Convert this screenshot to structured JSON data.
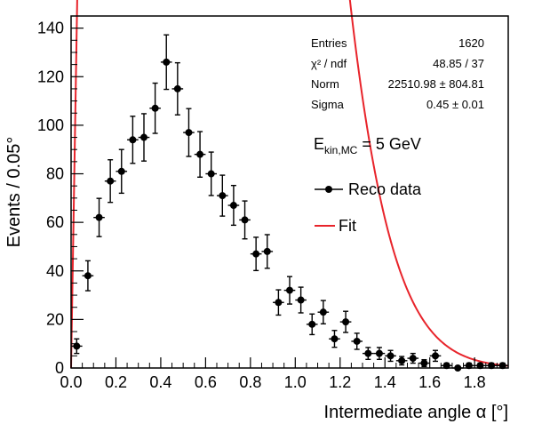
{
  "chart_data": {
    "type": "scatter",
    "xlabel": "Intermediate angle α [°]",
    "ylabel": "Events / 0.05°",
    "xlim": [
      0.0,
      1.95
    ],
    "ylim": [
      0,
      145
    ],
    "x_ticks": [
      "0.0",
      "0.2",
      "0.4",
      "0.6",
      "0.8",
      "1.0",
      "1.2",
      "1.4",
      "1.6",
      "1.8"
    ],
    "y_ticks": [
      "0",
      "20",
      "40",
      "60",
      "80",
      "100",
      "120",
      "140"
    ],
    "bin_width": 0.05,
    "series": [
      {
        "name": "Reco data",
        "x": [
          0.025,
          0.075,
          0.125,
          0.175,
          0.225,
          0.275,
          0.325,
          0.375,
          0.425,
          0.475,
          0.525,
          0.575,
          0.625,
          0.675,
          0.725,
          0.775,
          0.825,
          0.875,
          0.925,
          0.975,
          1.025,
          1.075,
          1.125,
          1.175,
          1.225,
          1.275,
          1.325,
          1.375,
          1.425,
          1.475,
          1.525,
          1.575,
          1.625,
          1.675,
          1.725,
          1.775,
          1.825,
          1.875,
          1.925
        ],
        "y": [
          9,
          38,
          62,
          77,
          81,
          94,
          95,
          107,
          126,
          115,
          97,
          88,
          80,
          71,
          67,
          61,
          47,
          48,
          27,
          32,
          28,
          18,
          23,
          12,
          19,
          11,
          6,
          6,
          5,
          3,
          4,
          2,
          5,
          1,
          0,
          1,
          1,
          1,
          1
        ]
      },
      {
        "name": "Fit",
        "function": "Norm * 0.05 * x / Sigma^2 * exp(-x^2 / (2 Sigma^2))",
        "params": {
          "Norm": 22510.98,
          "Sigma": 0.45
        }
      }
    ],
    "stats_box": [
      {
        "label": "Entries",
        "value": "1620"
      },
      {
        "label": "χ² / ndf",
        "value": "48.85 / 37"
      },
      {
        "label": "Norm",
        "value": "22510.98 ± 804.81"
      },
      {
        "label": "Sigma",
        "value": "0.45 ± 0.01"
      }
    ],
    "annotation": {
      "main": "E",
      "sub": "kin,MC",
      "rest": " = 5 GeV"
    },
    "legend": [
      {
        "label": "Reco data",
        "style": "marker"
      },
      {
        "label": "Fit",
        "style": "line"
      }
    ],
    "colors": {
      "data": "#000000",
      "fit": "#e8242b"
    }
  }
}
